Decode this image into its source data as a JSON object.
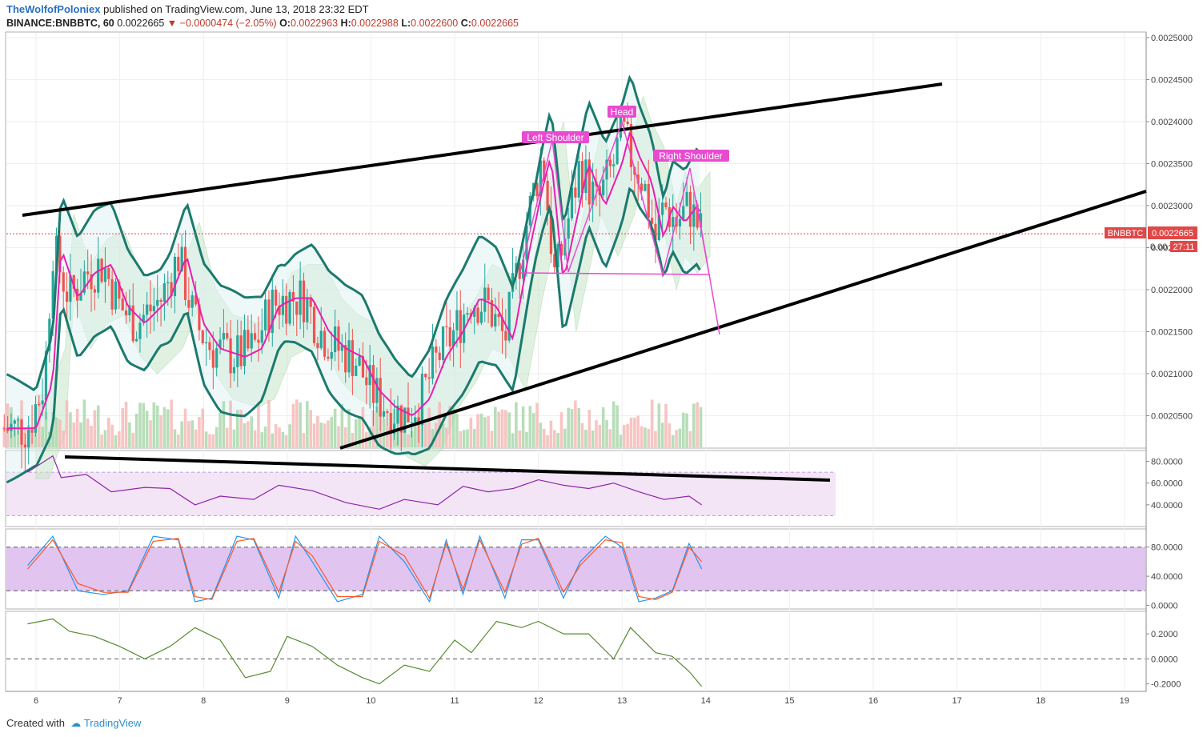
{
  "header": {
    "author": "TheWolfofPoloniex",
    "published": " published on TradingView.com, June 13, 2018 23:32 EDT",
    "symbol": "BINANCE:BNBBTC, 60",
    "last": "0.0022665",
    "change": "−0.0000474 (−2.05%)",
    "o_label": "O:",
    "o": "0.0022963",
    "h_label": "H:",
    "h": "0.0022988",
    "l_label": "L:",
    "l": "0.0022600",
    "c_label": "C:",
    "c": "0.0022665"
  },
  "footer": {
    "created": "Created with",
    "brand": "TradingView"
  },
  "price_tag": {
    "symbol": "BNBBTC",
    "price": "0.0022665",
    "price_short": "0.00",
    "countdown": "27:11"
  },
  "annotations": {
    "left_shoulder": "Left Shoulder",
    "head": "Head",
    "right_shoulder": "Right Shoulder"
  },
  "colors": {
    "up": "#26a69a",
    "down": "#ef5350",
    "rsi": "#8e24aa",
    "stoch_k": "#2196f3",
    "stoch_d": "#ff5722",
    "osc": "#558b2f",
    "bb": "#1b7a6e",
    "ma": "#e91eb0",
    "pattern": "#e84bd0"
  },
  "chart_data": [
    {
      "type": "candlestick",
      "title": "BINANCE:BNBBTC, 60",
      "y_ticks": [
        "0.0025000",
        "0.0024500",
        "0.0024000",
        "0.0023500",
        "0.0023000",
        "0.0022500",
        "0.0022000",
        "0.0021500",
        "0.0021000",
        "0.0020500"
      ],
      "ylim": [
        0.00202,
        0.0025
      ],
      "x_ticks": [
        "6",
        "7",
        "8",
        "9",
        "10",
        "11",
        "12",
        "13",
        "14",
        "15",
        "16",
        "17",
        "18",
        "19"
      ],
      "close_series_keypoints": {
        "x": [
          5.9,
          6.1,
          6.2,
          6.4,
          6.6,
          6.8,
          7.0,
          7.2,
          7.5,
          7.7,
          7.9,
          8.1,
          8.4,
          8.6,
          8.8,
          9.0,
          9.2,
          9.4,
          9.6,
          9.8,
          10.0,
          10.2,
          10.4,
          10.6,
          10.8,
          11.0,
          11.2,
          11.4,
          11.6,
          11.8,
          11.95,
          12.05,
          12.2,
          12.35,
          12.5,
          12.7,
          12.9,
          13.0,
          13.1,
          13.25,
          13.4,
          13.5,
          13.65,
          13.8,
          13.95
        ],
        "y": [
          0.002035,
          0.00209,
          0.00225,
          0.00219,
          0.00222,
          0.00223,
          0.00218,
          0.00216,
          0.00219,
          0.00224,
          0.00216,
          0.00213,
          0.00212,
          0.00213,
          0.00218,
          0.00219,
          0.00219,
          0.00215,
          0.00213,
          0.00212,
          0.00208,
          0.00206,
          0.00205,
          0.00207,
          0.00212,
          0.00215,
          0.00219,
          0.00218,
          0.00214,
          0.00225,
          0.00232,
          0.00236,
          0.00221,
          0.00228,
          0.00235,
          0.0023,
          0.00235,
          0.00239,
          0.00236,
          0.00233,
          0.00226,
          0.0023,
          0.00228,
          0.0023,
          0.0022665
        ]
      },
      "last_price": 0.0022665
    },
    {
      "type": "line",
      "title": "RSI",
      "y_ticks": [
        "80.0000",
        "60.0000",
        "40.0000"
      ],
      "ylim": [
        20,
        90
      ],
      "x": [
        5.9,
        6.2,
        6.3,
        6.6,
        6.9,
        7.3,
        7.6,
        7.9,
        8.2,
        8.6,
        8.9,
        9.3,
        9.7,
        10.1,
        10.4,
        10.8,
        11.1,
        11.4,
        11.7,
        12.0,
        12.3,
        12.6,
        12.9,
        13.2,
        13.5,
        13.8,
        13.95
      ],
      "values": [
        70,
        85,
        65,
        68,
        52,
        56,
        55,
        40,
        48,
        45,
        58,
        53,
        42,
        36,
        45,
        40,
        57,
        52,
        55,
        63,
        58,
        55,
        60,
        52,
        45,
        48,
        40
      ]
    },
    {
      "type": "line",
      "title": "Stochastic RSI",
      "y_ticks": [
        "80.0000",
        "40.0000",
        "0.0000"
      ],
      "ylim": [
        -5,
        105
      ],
      "series": [
        {
          "x": [
            5.9,
            6.2,
            6.5,
            6.8,
            7.1,
            7.4,
            7.7,
            7.9,
            8.1,
            8.4,
            8.6,
            8.9,
            9.1,
            9.3,
            9.6,
            9.9,
            10.1,
            10.4,
            10.7,
            10.9,
            11.1,
            11.3,
            11.6,
            11.8,
            12.0,
            12.3,
            12.5,
            12.8,
            13.0,
            13.2,
            13.4,
            13.6,
            13.8,
            13.95
          ],
          "values": [
            55,
            95,
            20,
            15,
            20,
            95,
            90,
            5,
            10,
            95,
            90,
            10,
            95,
            60,
            5,
            15,
            95,
            60,
            5,
            90,
            15,
            95,
            10,
            90,
            90,
            10,
            60,
            95,
            80,
            5,
            10,
            20,
            85,
            50
          ]
        },
        {
          "x": [
            5.9,
            6.2,
            6.5,
            6.8,
            7.1,
            7.4,
            7.7,
            7.9,
            8.1,
            8.4,
            8.6,
            8.9,
            9.1,
            9.3,
            9.6,
            9.9,
            10.1,
            10.4,
            10.7,
            10.9,
            11.1,
            11.3,
            11.6,
            11.8,
            12.0,
            12.3,
            12.5,
            12.8,
            13.0,
            13.2,
            13.4,
            13.6,
            13.8,
            13.95
          ],
          "values": [
            50,
            90,
            30,
            18,
            18,
            88,
            92,
            12,
            8,
            88,
            92,
            18,
            88,
            68,
            12,
            12,
            88,
            68,
            10,
            85,
            22,
            90,
            18,
            84,
            92,
            18,
            55,
            90,
            86,
            12,
            8,
            18,
            80,
            60
          ]
        }
      ]
    },
    {
      "type": "line",
      "title": "Oscillator",
      "y_ticks": [
        "0.2000",
        "0.0000",
        "-0.2000"
      ],
      "ylim": [
        -0.26,
        0.38
      ],
      "x": [
        5.9,
        6.2,
        6.4,
        6.7,
        7.0,
        7.3,
        7.6,
        7.9,
        8.2,
        8.5,
        8.8,
        9.0,
        9.3,
        9.6,
        9.9,
        10.1,
        10.4,
        10.7,
        11.0,
        11.2,
        11.5,
        11.8,
        12.0,
        12.3,
        12.6,
        12.9,
        13.1,
        13.4,
        13.6,
        13.8,
        13.95
      ],
      "values": [
        0.28,
        0.32,
        0.22,
        0.18,
        0.1,
        0.0,
        0.1,
        0.25,
        0.15,
        -0.15,
        -0.1,
        0.18,
        0.1,
        -0.05,
        -0.15,
        -0.2,
        -0.05,
        -0.1,
        0.15,
        0.05,
        0.3,
        0.25,
        0.3,
        0.2,
        0.2,
        0.0,
        0.25,
        0.05,
        0.02,
        -0.1,
        -0.22
      ]
    }
  ]
}
